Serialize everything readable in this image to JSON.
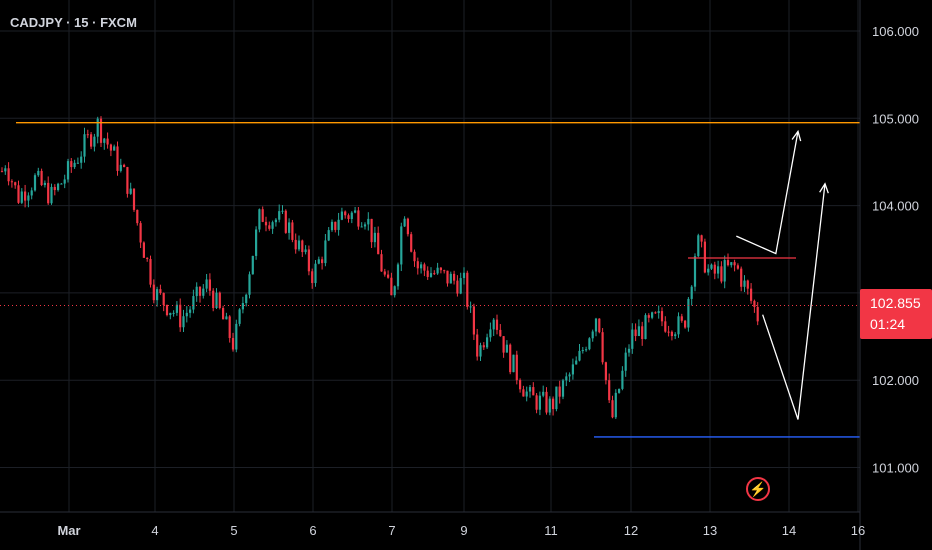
{
  "header": {
    "symbol_title": "CADJPY · 15 · FXCM"
  },
  "price_badge": {
    "price": "102.855",
    "countdown": "01:24",
    "color": "#f23645"
  },
  "colors": {
    "up": "#26a69a",
    "down": "#f23645",
    "resistance": "#ff9800",
    "support": "#2962ff",
    "level_red": "#f23645",
    "arrows": "#ffffff"
  },
  "icons": {
    "alert": "lightning-icon"
  },
  "chart_data": {
    "type": "candlestick",
    "title": "",
    "xlabel": "",
    "ylabel": "",
    "ylim": [
      100.6,
      106.2
    ],
    "y_ticks": [
      "106.000",
      "105.000",
      "104.000",
      "103.000",
      "102.000",
      "101.000"
    ],
    "x_ticks": [
      "Mar",
      "4",
      "5",
      "6",
      "7",
      "9",
      "11",
      "12",
      "13",
      "14",
      "16"
    ],
    "price_path": [
      {
        "x": "Mar 1 00:00",
        "y": 103.4
      },
      {
        "x": "Mar 1 08:00",
        "y": 104.1
      },
      {
        "x": "Mar 1 16:00",
        "y": 104.5
      },
      {
        "x": "Mar 2 00:00",
        "y": 104.1
      },
      {
        "x": "Mar 2 08:00",
        "y": 104.3
      },
      {
        "x": "Mar 2 16:00",
        "y": 104.1
      },
      {
        "x": "Mar 3 00:00",
        "y": 104.4
      },
      {
        "x": "Mar 3 08:00",
        "y": 104.93
      },
      {
        "x": "Mar 3 16:00",
        "y": 104.3
      },
      {
        "x": "Mar 4 00:00",
        "y": 103.0
      },
      {
        "x": "Mar 4 08:00",
        "y": 102.7
      },
      {
        "x": "Mar 4 16:00",
        "y": 103.1
      },
      {
        "x": "Mar 5 00:00",
        "y": 102.4
      },
      {
        "x": "Mar 5 08:00",
        "y": 103.9
      },
      {
        "x": "Mar 5 16:00",
        "y": 103.8
      },
      {
        "x": "Mar 6 00:00",
        "y": 103.2
      },
      {
        "x": "Mar 6 08:00",
        "y": 103.9
      },
      {
        "x": "Mar 6 16:00",
        "y": 103.9
      },
      {
        "x": "Mar 7 00:00",
        "y": 102.9
      },
      {
        "x": "Mar 7 08:00",
        "y": 104.0
      },
      {
        "x": "Mar 7 16:00",
        "y": 103.3
      },
      {
        "x": "Mar 9 00:00",
        "y": 103.1
      },
      {
        "x": "Mar 9 08:00",
        "y": 102.3
      },
      {
        "x": "Mar 9 16:00",
        "y": 102.8
      },
      {
        "x": "Mar 10 00:00",
        "y": 102.3
      },
      {
        "x": "Mar 10 12:00",
        "y": 101.8
      },
      {
        "x": "Mar 11 00:00",
        "y": 101.7
      },
      {
        "x": "Mar 11 08:00",
        "y": 102.2
      },
      {
        "x": "Mar 11 14:00",
        "y": 102.8
      },
      {
        "x": "Mar 11 18:00",
        "y": 101.5
      },
      {
        "x": "Mar 12 00:00",
        "y": 102.5
      },
      {
        "x": "Mar 12 08:00",
        "y": 102.7
      },
      {
        "x": "Mar 12 16:00",
        "y": 102.6
      },
      {
        "x": "Mar 12 20:00",
        "y": 103.6
      },
      {
        "x": "Mar 13 00:00",
        "y": 103.2
      },
      {
        "x": "Mar 13 08:00",
        "y": 103.3
      },
      {
        "x": "Mar 13 16:00",
        "y": 102.6
      },
      {
        "x": "Mar 13 20:00",
        "y": 103.1
      },
      {
        "x": "Mar 14 00:00",
        "y": 102.86
      }
    ],
    "horizontal_levels": [
      {
        "name": "resistance",
        "price": 104.95,
        "color": "#ff9800"
      },
      {
        "name": "current-price",
        "price": 102.855,
        "color": "#f23645",
        "style": "dotted"
      },
      {
        "name": "support",
        "price": 101.35,
        "color": "#2962ff"
      },
      {
        "name": "local-resistance",
        "price": 103.4,
        "color": "#f23645"
      }
    ],
    "projections": [
      {
        "name": "bullish-path",
        "points": [
          {
            "x": "Mar 13 08:00",
            "y": 103.65
          },
          {
            "x": "Mar 13 20:00",
            "y": 103.45
          },
          {
            "x": "Mar 14 06:00",
            "y": 104.85
          }
        ],
        "color": "#ffffff"
      },
      {
        "name": "bearish-then-bullish-path",
        "points": [
          {
            "x": "Mar 13 16:00",
            "y": 102.75
          },
          {
            "x": "Mar 14 06:00",
            "y": 101.55
          },
          {
            "x": "Mar 15 00:00",
            "y": 104.25
          }
        ],
        "color": "#ffffff"
      }
    ]
  }
}
